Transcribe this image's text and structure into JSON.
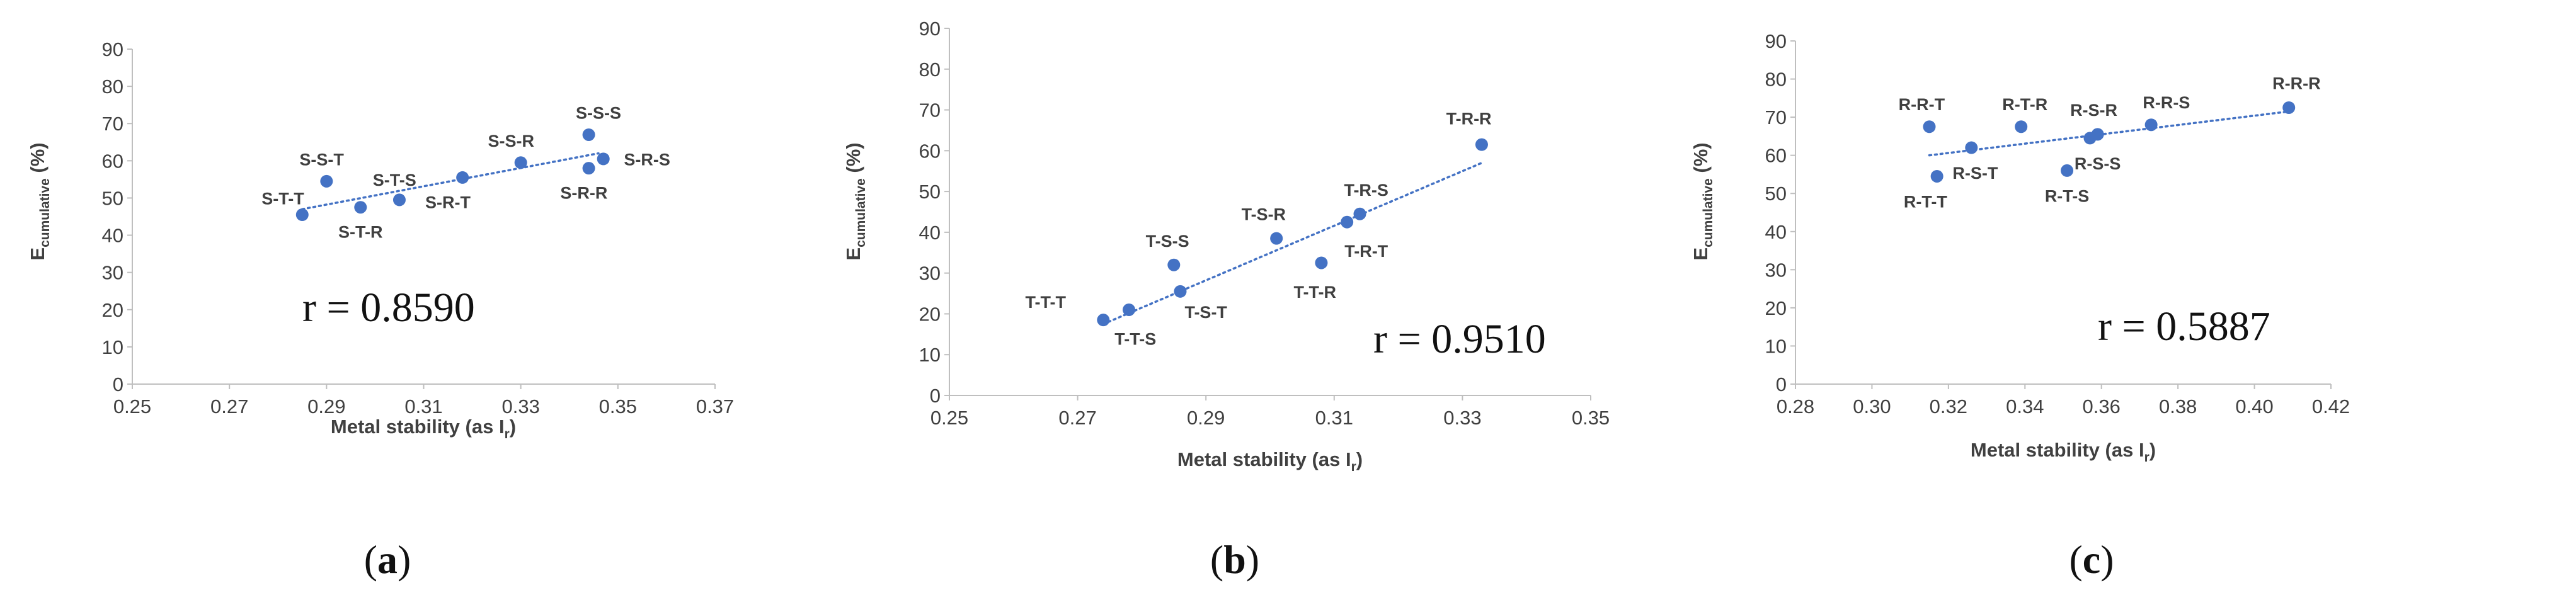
{
  "colors": {
    "marker": "#4472C4",
    "trend": "#4472C4",
    "axis": "#bfbfbf",
    "text": "#404040"
  },
  "y_axis_label": {
    "main": "E",
    "sub": "cumulative",
    "unit": " (%)"
  },
  "x_axis_label": {
    "main": "Metal stability (as I",
    "sub": "r",
    "close": ")"
  },
  "chart_data": [
    {
      "type": "scatter",
      "panel": "(a)",
      "caption_open": "(",
      "caption_letter": "a",
      "caption_close": ")",
      "annotation": "r = 0.8590",
      "xlim": [
        0.25,
        0.37
      ],
      "xticks": [
        "0.25",
        "0.27",
        "0.29",
        "0.31",
        "0.33",
        "0.35",
        "0.37"
      ],
      "ylim": [
        0,
        90
      ],
      "yticks": [
        "0",
        "10",
        "20",
        "30",
        "40",
        "50",
        "60",
        "70",
        "80",
        "90"
      ],
      "trendline": {
        "x": [
          0.285,
          0.346
        ],
        "y": [
          47,
          62
        ]
      },
      "points": [
        {
          "label": "S-T-T",
          "x": 0.285,
          "y": 45.5,
          "lx": -0.004,
          "ly": 4.5
        },
        {
          "label": "S-S-T",
          "x": 0.29,
          "y": 54.5,
          "lx": -0.001,
          "ly": 6
        },
        {
          "label": "S-T-R",
          "x": 0.297,
          "y": 47.5,
          "lx": 0,
          "ly": -6.5
        },
        {
          "label": "S-T-S",
          "x": 0.305,
          "y": 49.5,
          "lx": -0.001,
          "ly": 5.5
        },
        {
          "label": "S-R-T",
          "x": 0.318,
          "y": 55.5,
          "lx": -0.003,
          "ly": -6.5
        },
        {
          "label": "S-S-R",
          "x": 0.33,
          "y": 59.5,
          "lx": -0.002,
          "ly": 6
        },
        {
          "label": "S-S-S",
          "x": 0.344,
          "y": 67.0,
          "lx": 0.002,
          "ly": 6
        },
        {
          "label": "S-R-S",
          "x": 0.347,
          "y": 60.5,
          "lx": 0.009,
          "ly": 0
        },
        {
          "label": "S-R-R",
          "x": 0.344,
          "y": 58.0,
          "lx": -0.001,
          "ly": -6.5
        }
      ]
    },
    {
      "type": "scatter",
      "panel": "(b)",
      "caption_open": "(",
      "caption_letter": "b",
      "caption_close": ")",
      "annotation": "r = 0.9510",
      "xlim": [
        0.25,
        0.35
      ],
      "xticks": [
        "0.25",
        "0.27",
        "0.29",
        "0.31",
        "0.33",
        "0.35"
      ],
      "ylim": [
        0,
        90
      ],
      "yticks": [
        "0",
        "10",
        "20",
        "30",
        "40",
        "50",
        "60",
        "70",
        "80",
        "90"
      ],
      "trendline": {
        "x": [
          0.274,
          0.333
        ],
        "y": [
          17.5,
          57
        ]
      },
      "points": [
        {
          "label": "T-T-T",
          "x": 0.274,
          "y": 18.5,
          "lx": -0.009,
          "ly": 4.5
        },
        {
          "label": "T-T-S",
          "x": 0.278,
          "y": 21.0,
          "lx": 0.001,
          "ly": -7
        },
        {
          "label": "T-S-S",
          "x": 0.285,
          "y": 32.0,
          "lx": -0.001,
          "ly": 6
        },
        {
          "label": "T-S-T",
          "x": 0.286,
          "y": 25.5,
          "lx": 0.004,
          "ly": -5
        },
        {
          "label": "T-S-R",
          "x": 0.301,
          "y": 38.5,
          "lx": -0.002,
          "ly": 6
        },
        {
          "label": "T-T-R",
          "x": 0.308,
          "y": 32.5,
          "lx": -0.001,
          "ly": -7
        },
        {
          "label": "T-R-S",
          "x": 0.314,
          "y": 44.5,
          "lx": 0.001,
          "ly": 6
        },
        {
          "label": "T-R-T",
          "x": 0.312,
          "y": 42.5,
          "lx": 0.003,
          "ly": -7
        },
        {
          "label": "T-R-R",
          "x": 0.333,
          "y": 61.5,
          "lx": -0.002,
          "ly": 6.5
        }
      ]
    },
    {
      "type": "scatter",
      "panel": "(c)",
      "caption_open": "(",
      "caption_letter": "c",
      "caption_close": ")",
      "annotation": "r = 0.5887",
      "xlim": [
        0.28,
        0.42
      ],
      "xticks": [
        "0.28",
        "0.30",
        "0.32",
        "0.34",
        "0.36",
        "0.38",
        "0.40",
        "0.42"
      ],
      "ylim": [
        0,
        90
      ],
      "yticks": [
        "0",
        "10",
        "20",
        "30",
        "40",
        "50",
        "60",
        "70",
        "80",
        "90"
      ],
      "trendline": {
        "x": [
          0.315,
          0.409
        ],
        "y": [
          60,
          71.5
        ]
      },
      "points": [
        {
          "label": "R-R-T",
          "x": 0.315,
          "y": 67.5,
          "lx": -0.002,
          "ly": 6
        },
        {
          "label": "R-T-T",
          "x": 0.317,
          "y": 54.5,
          "lx": -0.003,
          "ly": -6.5
        },
        {
          "label": "R-S-T",
          "x": 0.326,
          "y": 62.0,
          "lx": 0.001,
          "ly": -6.5
        },
        {
          "label": "R-T-R",
          "x": 0.339,
          "y": 67.5,
          "lx": 0.001,
          "ly": 6
        },
        {
          "label": "R-T-S",
          "x": 0.351,
          "y": 56.0,
          "lx": 0,
          "ly": -6.5
        },
        {
          "label": "R-S-R",
          "x": 0.359,
          "y": 65.5,
          "lx": -0.001,
          "ly": 6.5
        },
        {
          "label": "R-S-S",
          "x": 0.357,
          "y": 64.5,
          "lx": 0.002,
          "ly": -6.5
        },
        {
          "label": "R-R-S",
          "x": 0.373,
          "y": 68.0,
          "lx": 0.004,
          "ly": 6
        },
        {
          "label": "R-R-R",
          "x": 0.409,
          "y": 72.5,
          "lx": 0.002,
          "ly": 6.5
        }
      ]
    }
  ]
}
